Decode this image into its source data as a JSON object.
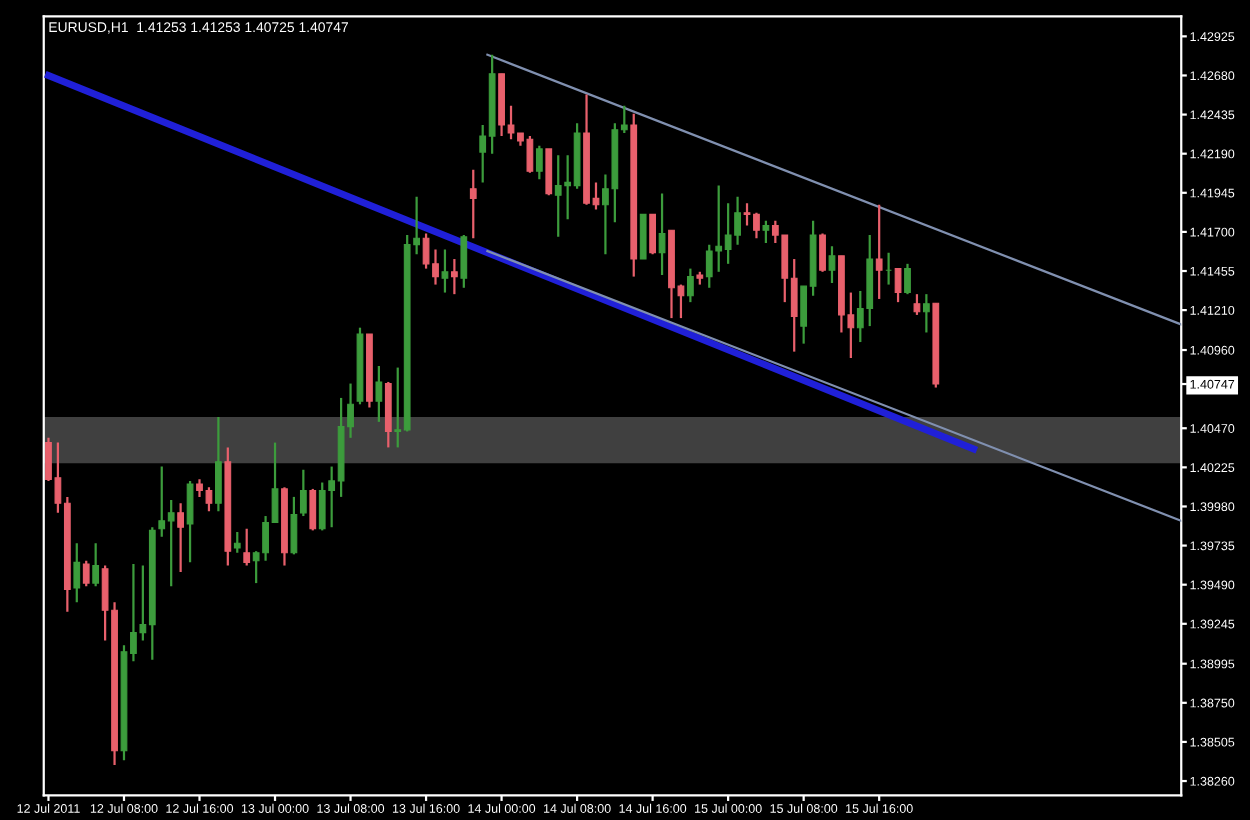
{
  "chart_data": {
    "type": "candlestick",
    "title": "EURUSD,H1  1.41253 1.41253 1.40725 1.40747",
    "x": [
      "2011-07-12T00:00",
      "2011-07-12T01:00",
      "2011-07-12T02:00",
      "2011-07-12T03:00",
      "2011-07-12T04:00",
      "2011-07-12T05:00",
      "2011-07-12T06:00",
      "2011-07-12T07:00",
      "2011-07-12T08:00",
      "2011-07-12T09:00",
      "2011-07-12T10:00",
      "2011-07-12T11:00",
      "2011-07-12T12:00",
      "2011-07-12T13:00",
      "2011-07-12T14:00",
      "2011-07-12T15:00",
      "2011-07-12T16:00",
      "2011-07-12T17:00",
      "2011-07-12T18:00",
      "2011-07-12T19:00",
      "2011-07-12T20:00",
      "2011-07-12T21:00",
      "2011-07-12T22:00",
      "2011-07-12T23:00",
      "2011-07-13T00:00",
      "2011-07-13T01:00",
      "2011-07-13T02:00",
      "2011-07-13T03:00",
      "2011-07-13T04:00",
      "2011-07-13T05:00",
      "2011-07-13T06:00",
      "2011-07-13T07:00",
      "2011-07-13T08:00",
      "2011-07-13T09:00",
      "2011-07-13T10:00",
      "2011-07-13T11:00",
      "2011-07-13T12:00",
      "2011-07-13T13:00",
      "2011-07-13T14:00",
      "2011-07-13T15:00",
      "2011-07-13T16:00",
      "2011-07-13T17:00",
      "2011-07-13T18:00",
      "2011-07-13T19:00",
      "2011-07-13T20:00",
      "2011-07-13T21:00",
      "2011-07-13T22:00",
      "2011-07-13T23:00",
      "2011-07-14T00:00",
      "2011-07-14T01:00",
      "2011-07-14T02:00",
      "2011-07-14T03:00",
      "2011-07-14T04:00",
      "2011-07-14T05:00",
      "2011-07-14T06:00",
      "2011-07-14T07:00",
      "2011-07-14T08:00",
      "2011-07-14T09:00",
      "2011-07-14T10:00",
      "2011-07-14T11:00",
      "2011-07-14T12:00",
      "2011-07-14T13:00",
      "2011-07-14T14:00",
      "2011-07-14T15:00",
      "2011-07-14T16:00",
      "2011-07-14T17:00",
      "2011-07-14T18:00",
      "2011-07-14T19:00",
      "2011-07-14T20:00",
      "2011-07-14T21:00",
      "2011-07-14T22:00",
      "2011-07-14T23:00",
      "2011-07-15T00:00",
      "2011-07-15T01:00",
      "2011-07-15T02:00",
      "2011-07-15T03:00",
      "2011-07-15T04:00",
      "2011-07-15T05:00",
      "2011-07-15T06:00",
      "2011-07-15T07:00",
      "2011-07-15T08:00",
      "2011-07-15T09:00",
      "2011-07-15T10:00",
      "2011-07-15T11:00",
      "2011-07-15T12:00",
      "2011-07-15T13:00",
      "2011-07-15T14:00",
      "2011-07-15T15:00",
      "2011-07-15T16:00",
      "2011-07-15T17:00",
      "2011-07-15T18:00",
      "2011-07-15T19:00",
      "2011-07-15T20:00",
      "2011-07-15T21:00",
      "2011-07-15T22:00"
    ],
    "ohlc": [
      [
        1.4038,
        1.4041,
        1.4014,
        1.4015
      ],
      [
        1.4016,
        1.4038,
        1.3994,
        1.4
      ],
      [
        1.4,
        1.4004,
        1.3932,
        1.3946
      ],
      [
        1.3947,
        1.3975,
        1.3938,
        1.3963
      ],
      [
        1.3962,
        1.3964,
        1.3948,
        1.395
      ],
      [
        1.395,
        1.3975,
        1.3948,
        1.3961
      ],
      [
        1.3959,
        1.3961,
        1.3914,
        1.3933
      ],
      [
        1.3933,
        1.3938,
        1.3836,
        1.3845
      ],
      [
        1.3845,
        1.3911,
        1.3839,
        1.3907
      ],
      [
        1.3906,
        1.3962,
        1.3901,
        1.3919
      ],
      [
        1.3919,
        1.3961,
        1.3914,
        1.3924
      ],
      [
        1.3924,
        1.3985,
        1.3902,
        1.3983
      ],
      [
        1.3984,
        1.4023,
        1.3979,
        1.3989
      ],
      [
        1.3989,
        1.4002,
        1.3948,
        1.3994
      ],
      [
        1.3994,
        1.4,
        1.3957,
        1.3985
      ],
      [
        1.3987,
        1.4014,
        1.3963,
        1.4012
      ],
      [
        1.4012,
        1.4015,
        1.4004,
        1.4008
      ],
      [
        1.4008,
        1.401,
        1.3995,
        1.4
      ],
      [
        1.4,
        1.4054,
        1.3995,
        1.4026
      ],
      [
        1.4026,
        1.4035,
        1.3961,
        1.397
      ],
      [
        1.3972,
        1.3982,
        1.3969,
        1.3975
      ],
      [
        1.3969,
        1.3984,
        1.3961,
        1.3963
      ],
      [
        1.3964,
        1.397,
        1.395,
        1.3969
      ],
      [
        1.3969,
        1.3992,
        1.3964,
        1.3988
      ],
      [
        1.3988,
        1.4038,
        1.3988,
        1.4009
      ],
      [
        1.4009,
        1.401,
        1.3961,
        1.3969
      ],
      [
        1.3969,
        1.4004,
        1.3968,
        1.3993
      ],
      [
        1.3994,
        1.4021,
        1.3992,
        1.4008
      ],
      [
        1.4008,
        1.4009,
        1.3983,
        1.3984
      ],
      [
        1.3984,
        1.4013,
        1.3983,
        1.4008
      ],
      [
        1.4008,
        1.4023,
        1.3985,
        1.4014
      ],
      [
        1.4014,
        1.4066,
        1.4004,
        1.4048
      ],
      [
        1.4048,
        1.4075,
        1.4041,
        1.4062
      ],
      [
        1.4064,
        1.411,
        1.4062,
        1.4106
      ],
      [
        1.4106,
        1.4106,
        1.406,
        1.4064
      ],
      [
        1.4064,
        1.4086,
        1.4051,
        1.4076
      ],
      [
        1.4075,
        1.4076,
        1.4035,
        1.4045
      ],
      [
        1.4045,
        1.4085,
        1.4035,
        1.4046
      ],
      [
        1.4046,
        1.4168,
        1.4045,
        1.4162
      ],
      [
        1.4162,
        1.4192,
        1.4156,
        1.4166
      ],
      [
        1.4166,
        1.4169,
        1.4147,
        1.415
      ],
      [
        1.415,
        1.4159,
        1.4137,
        1.4142
      ],
      [
        1.4141,
        1.4159,
        1.4132,
        1.4145
      ],
      [
        1.4145,
        1.4153,
        1.4131,
        1.4142
      ],
      [
        1.4141,
        1.4168,
        1.4135,
        1.4167
      ],
      [
        1.4197,
        1.4209,
        1.4166,
        1.4191
      ],
      [
        1.422,
        1.4237,
        1.4201,
        1.423
      ],
      [
        1.423,
        1.4281,
        1.4219,
        1.4269
      ],
      [
        1.4269,
        1.4269,
        1.423,
        1.4237
      ],
      [
        1.4237,
        1.4249,
        1.4228,
        1.4232
      ],
      [
        1.4232,
        1.4232,
        1.4224,
        1.4227
      ],
      [
        1.4228,
        1.423,
        1.4207,
        1.4208
      ],
      [
        1.4208,
        1.4224,
        1.4203,
        1.4222
      ],
      [
        1.4222,
        1.4222,
        1.4193,
        1.4194
      ],
      [
        1.4193,
        1.4218,
        1.4167,
        1.4199
      ],
      [
        1.4199,
        1.4218,
        1.4178,
        1.4201
      ],
      [
        1.4199,
        1.4238,
        1.4197,
        1.4232
      ],
      [
        1.4232,
        1.4256,
        1.4187,
        1.4188
      ],
      [
        1.4191,
        1.4201,
        1.4184,
        1.4187
      ],
      [
        1.4187,
        1.4206,
        1.4156,
        1.4197
      ],
      [
        1.4197,
        1.4238,
        1.4176,
        1.4234
      ],
      [
        1.4234,
        1.4249,
        1.4232,
        1.4237
      ],
      [
        1.4237,
        1.4244,
        1.4142,
        1.4153
      ],
      [
        1.4153,
        1.4181,
        1.4153,
        1.4181
      ],
      [
        1.4181,
        1.4181,
        1.4156,
        1.4157
      ],
      [
        1.4157,
        1.4194,
        1.4143,
        1.4169
      ],
      [
        1.4171,
        1.4171,
        1.4116,
        1.4135
      ],
      [
        1.4136,
        1.4137,
        1.4116,
        1.413
      ],
      [
        1.413,
        1.4147,
        1.4126,
        1.4142
      ],
      [
        1.4143,
        1.4145,
        1.4137,
        1.4141
      ],
      [
        1.4142,
        1.4162,
        1.4135,
        1.4158
      ],
      [
        1.4158,
        1.4199,
        1.4145,
        1.4161
      ],
      [
        1.4159,
        1.4188,
        1.415,
        1.4168
      ],
      [
        1.4168,
        1.4192,
        1.4162,
        1.4182
      ],
      [
        1.4182,
        1.4188,
        1.4174,
        1.4181
      ],
      [
        1.4181,
        1.4182,
        1.4166,
        1.4171
      ],
      [
        1.4171,
        1.4177,
        1.4163,
        1.4174
      ],
      [
        1.4174,
        1.4177,
        1.4163,
        1.4168
      ],
      [
        1.4168,
        1.4168,
        1.4126,
        1.4141
      ],
      [
        1.4141,
        1.4153,
        1.4095,
        1.4117
      ],
      [
        1.4111,
        1.4136,
        1.41,
        1.4136
      ],
      [
        1.4136,
        1.4177,
        1.413,
        1.4168
      ],
      [
        1.4168,
        1.4169,
        1.4145,
        1.4146
      ],
      [
        1.4146,
        1.4161,
        1.4138,
        1.4155
      ],
      [
        1.4155,
        1.4155,
        1.4107,
        1.4118
      ],
      [
        1.4118,
        1.4132,
        1.4091,
        1.411
      ],
      [
        1.411,
        1.4133,
        1.4101,
        1.4122
      ],
      [
        1.4122,
        1.4168,
        1.4111,
        1.4153
      ],
      [
        1.4153,
        1.4187,
        1.4128,
        1.4146
      ],
      [
        1.4146,
        1.4157,
        1.4137,
        1.4146
      ],
      [
        1.4147,
        1.4147,
        1.4126,
        1.4132
      ],
      [
        1.4132,
        1.415,
        1.4131,
        1.4147
      ],
      [
        1.4125,
        1.4131,
        1.4118,
        1.412
      ],
      [
        1.412,
        1.4131,
        1.4107,
        1.4125
      ],
      [
        1.41253,
        1.41253,
        1.40725,
        1.40747
      ]
    ],
    "colors": [
      "#e8606c",
      "#e8606c",
      "#e8606c",
      "#3c9c3c",
      "#e8606c",
      "#3c9c3c",
      "#e8606c",
      "#e8606c",
      "#3c9c3c",
      "#3c9c3c",
      "#3c9c3c",
      "#3c9c3c",
      "#3c9c3c",
      "#3c9c3c",
      "#e8606c",
      "#3c9c3c",
      "#e8606c",
      "#e8606c",
      "#3c9c3c",
      "#e8606c",
      "#3c9c3c",
      "#e8606c",
      "#3c9c3c",
      "#3c9c3c",
      "#3c9c3c",
      "#e8606c",
      "#3c9c3c",
      "#3c9c3c",
      "#e8606c",
      "#3c9c3c",
      "#3c9c3c",
      "#3c9c3c",
      "#3c9c3c",
      "#3c9c3c",
      "#e8606c",
      "#3c9c3c",
      "#e8606c",
      "#3c9c3c",
      "#3c9c3c",
      "#3c9c3c",
      "#e8606c",
      "#e8606c",
      "#3c9c3c",
      "#e8606c",
      "#3c9c3c",
      "#e8606c",
      "#3c9c3c",
      "#3c9c3c",
      "#e8606c",
      "#e8606c",
      "#e8606c",
      "#e8606c",
      "#3c9c3c",
      "#e8606c",
      "#3c9c3c",
      "#3c9c3c",
      "#3c9c3c",
      "#e8606c",
      "#e8606c",
      "#3c9c3c",
      "#3c9c3c",
      "#3c9c3c",
      "#e8606c",
      "#3c9c3c",
      "#e8606c",
      "#3c9c3c",
      "#e8606c",
      "#e8606c",
      "#3c9c3c",
      "#e8606c",
      "#3c9c3c",
      "#3c9c3c",
      "#3c9c3c",
      "#3c9c3c",
      "#e8606c",
      "#e8606c",
      "#3c9c3c",
      "#e8606c",
      "#e8606c",
      "#e8606c",
      "#3c9c3c",
      "#3c9c3c",
      "#e8606c",
      "#3c9c3c",
      "#e8606c",
      "#e8606c",
      "#3c9c3c",
      "#3c9c3c",
      "#e8606c",
      "#3c9c3c",
      "#e8606c",
      "#3c9c3c",
      "#e8606c",
      "#3c9c3c",
      "#e8606c"
    ],
    "series": [
      {
        "type": "line",
        "x": [
          "2011-07-12T00:00",
          "2011-07-16T02:00"
        ],
        "values": [
          1.4268,
          1.4034
        ],
        "color": "#2020d8"
      },
      {
        "type": "line",
        "x": [
          "2011-07-13T22:30",
          "2011-07-17T00:00"
        ],
        "values": [
          1.4281,
          1.4112
        ],
        "color": "#8090b0"
      },
      {
        "type": "line",
        "x": [
          "2011-07-13T22:30",
          "2011-07-17T00:00"
        ],
        "values": [
          1.4158,
          1.3989
        ],
        "color": "#8090b0"
      }
    ],
    "bands": [
      {
        "axis": "y",
        "from": 1.4025,
        "to": 1.4054,
        "color": "#404040"
      }
    ],
    "xlim": [
      "2011-07-11T23:30",
      "2011-07-17T00:00"
    ],
    "xticks": [
      {
        "value": "2011-07-12T00:00",
        "label": "12 Jul 2011"
      },
      {
        "value": "2011-07-12T08:00",
        "label": "12 Jul 08:00"
      },
      {
        "value": "2011-07-12T16:00",
        "label": "12 Jul 16:00"
      },
      {
        "value": "2011-07-13T00:00",
        "label": "13 Jul 00:00"
      },
      {
        "value": "2011-07-13T08:00",
        "label": "13 Jul 08:00"
      },
      {
        "value": "2011-07-13T16:00",
        "label": "13 Jul 16:00"
      },
      {
        "value": "2011-07-14T00:00",
        "label": "14 Jul 00:00"
      },
      {
        "value": "2011-07-14T08:00",
        "label": "14 Jul 08:00"
      },
      {
        "value": "2011-07-14T16:00",
        "label": "14 Jul 16:00"
      },
      {
        "value": "2011-07-15T00:00",
        "label": "15 Jul 00:00"
      },
      {
        "value": "2011-07-15T08:00",
        "label": "15 Jul 08:00"
      },
      {
        "value": "2011-07-15T16:00",
        "label": "15 Jul 16:00"
      }
    ],
    "ylim": [
      1.3817,
      1.4305
    ],
    "yticks": [
      1.42925,
      {
        "value": 1.4268,
        "label": "1.42680"
      },
      {
        "value": 1.42435,
        "label": "1.42435"
      },
      {
        "value": 1.4219,
        "label": "1.42190"
      },
      {
        "value": 1.41945,
        "label": "1.41945"
      },
      {
        "value": 1.417,
        "label": "1.41700"
      },
      {
        "value": 1.41455,
        "label": "1.41455"
      },
      {
        "value": 1.4121,
        "label": "1.41210"
      },
      {
        "value": 1.4096,
        "label": "1.40960"
      },
      1.40747,
      {
        "value": 1.4047,
        "label": "1.40470"
      },
      {
        "value": 1.40225,
        "label": "1.40225"
      },
      {
        "value": 1.3998,
        "label": "1.39980"
      },
      {
        "value": 1.39735,
        "label": "1.39735"
      },
      {
        "value": 1.3949,
        "label": "1.39490"
      },
      {
        "value": 1.39245,
        "label": "1.39245"
      },
      {
        "value": 1.38995,
        "label": "1.38995"
      },
      {
        "value": 1.3875,
        "label": "1.38750"
      },
      {
        "value": 1.38505,
        "label": "1.38505"
      },
      {
        "value": 1.3826,
        "label": "1.38260"
      }
    ],
    "grid": false,
    "legend": false
  }
}
